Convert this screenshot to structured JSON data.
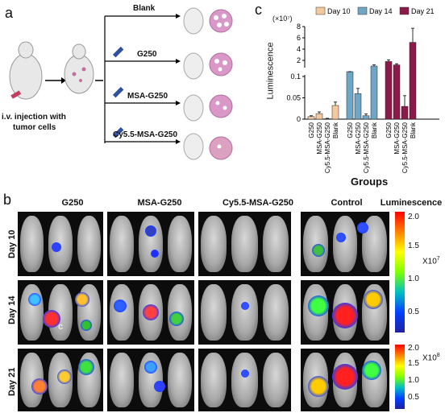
{
  "panel_a": {
    "letter": "a",
    "injection_label_line1": "i.v. injection with",
    "injection_label_line2": "tumor cells",
    "treatments": [
      "Blank",
      "G250",
      "MSA-G250",
      "Cy5.5-MSA-G250"
    ]
  },
  "panel_c": {
    "letter": "c",
    "chart_data": {
      "type": "bar",
      "ylabel": "Luminescence",
      "xlabel": "Groups",
      "scale_label": "(×10⁷)",
      "legend_position": "top",
      "categories": [
        "G250",
        "MSA-G250",
        "Cy5.5-MSA-G250",
        "Blank"
      ],
      "series": [
        {
          "name": "Day 10",
          "color": "#f5c9a0",
          "values": [
            0.006,
            0.013,
            0.001,
            0.032
          ],
          "errors": [
            0.002,
            0.004,
            0.001,
            0.008
          ]
        },
        {
          "name": "Day 14",
          "color": "#6fa6c6",
          "values": [
            0.5,
            0.06,
            0.008,
            1.0
          ],
          "errors": [
            0.05,
            0.012,
            0.004,
            0.2
          ]
        },
        {
          "name": "Day 21",
          "color": "#8b1a4a",
          "values": [
            1.8,
            1.2,
            0.03,
            5.2
          ],
          "errors": [
            0.3,
            0.2,
            0.025,
            2.5
          ]
        }
      ],
      "y_ticks_lower": [
        "0",
        "0.05",
        "0.1"
      ],
      "y_ticks_upper": [
        "2",
        "4",
        "6",
        "8"
      ]
    }
  },
  "panel_b": {
    "letter": "b",
    "columns": [
      "G250",
      "MSA-G250",
      "Cy5.5-MSA-G250",
      "Control"
    ],
    "rows": [
      "Day 10",
      "Day 14",
      "Day 21"
    ],
    "colorbar1": {
      "title": "Luminescence",
      "ticks": [
        "2.0",
        "1.5",
        "1.0",
        "0.5"
      ],
      "unit": "X10",
      "exponent": "7"
    },
    "colorbar2": {
      "ticks": [
        "2.0",
        "1.5",
        "1.0",
        "0.5"
      ],
      "unit": "X10",
      "exponent": "8"
    },
    "stray_letter": "c"
  }
}
